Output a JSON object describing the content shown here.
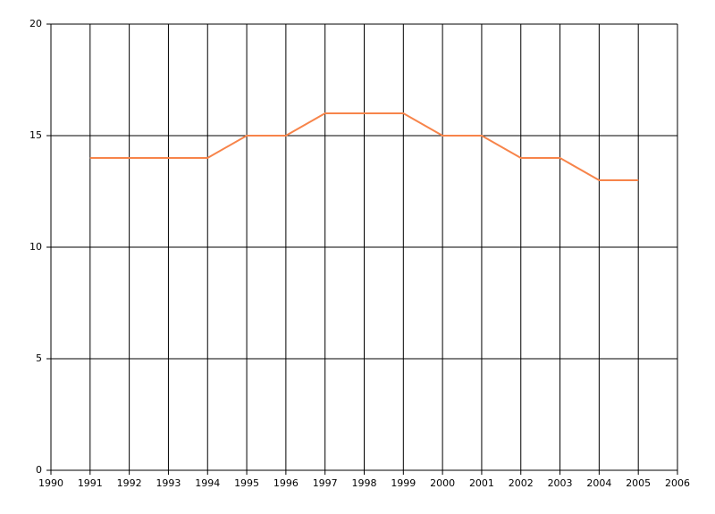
{
  "chart_data": {
    "type": "line",
    "x": [
      1991,
      1992,
      1993,
      1994,
      1995,
      1996,
      1997,
      1998,
      1999,
      2000,
      2001,
      2002,
      2003,
      2004,
      2005
    ],
    "series": [
      {
        "color": "#f7844a",
        "values": [
          14,
          14,
          14,
          14,
          15,
          15,
          16,
          16,
          16,
          15,
          15,
          14,
          14,
          13,
          13
        ]
      }
    ],
    "xlim": [
      1990,
      2006
    ],
    "xticks": [
      1990,
      1991,
      1992,
      1993,
      1994,
      1995,
      1996,
      1997,
      1998,
      1999,
      2000,
      2001,
      2002,
      2003,
      2004,
      2005,
      2006
    ],
    "ylim": [
      0,
      20
    ],
    "yticks": [
      0,
      5,
      10,
      15,
      20
    ],
    "grid": true
  }
}
